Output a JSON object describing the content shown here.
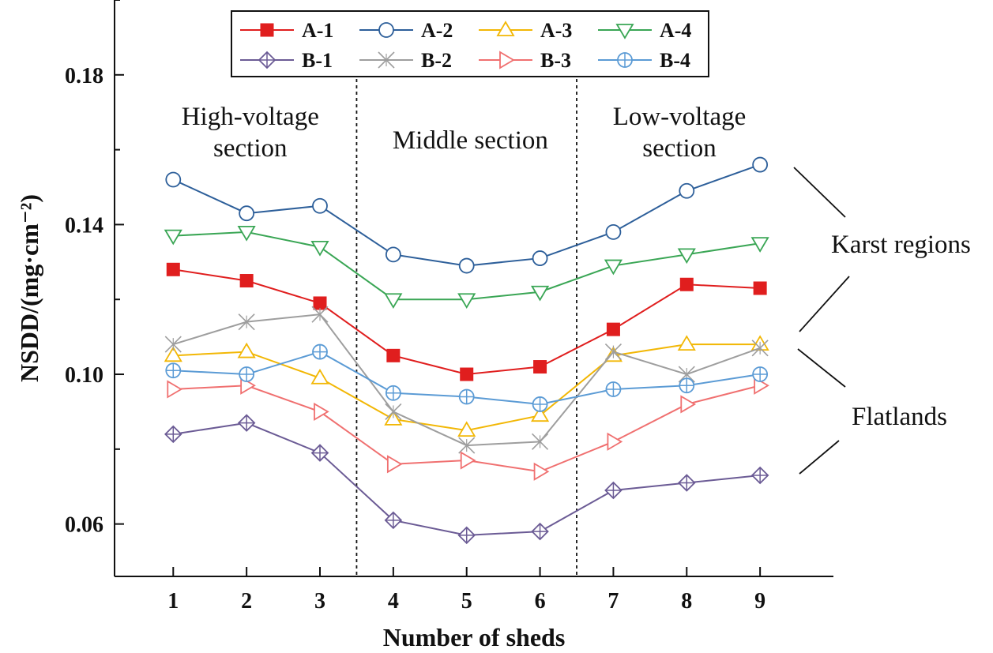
{
  "chart_data": {
    "type": "line",
    "xlabel": "Number of sheds",
    "ylabel": "NSDD/(mg·cm⁻²)",
    "x": [
      1,
      2,
      3,
      4,
      5,
      6,
      7,
      8,
      9
    ],
    "xlim": [
      0.2,
      10.0
    ],
    "ylim": [
      0.046,
      0.2
    ],
    "y_ticks": [
      0.06,
      0.1,
      0.14,
      0.18
    ],
    "y_tick_labels": [
      "0.06",
      "0.10",
      "0.14",
      "0.18"
    ],
    "y_minor_ticks": [
      0.08,
      0.12,
      0.16,
      0.2
    ],
    "section_dividers": [
      3.5,
      6.5
    ],
    "sections": [
      {
        "lines": [
          "High-voltage",
          "section"
        ],
        "x": 2.05
      },
      {
        "lines": [
          "Middle section"
        ],
        "x": 5.05
      },
      {
        "lines": [
          "Low-voltage",
          "section"
        ],
        "x": 7.9
      }
    ],
    "annotations": [
      "Karst regions",
      "Flatlands"
    ],
    "legend": {
      "placement": "top-center",
      "columns": 4
    },
    "series": [
      {
        "name": "A-1",
        "color": "#e01e1e",
        "marker": "square-filled",
        "values": [
          0.128,
          0.125,
          0.119,
          0.105,
          0.1,
          0.102,
          0.112,
          0.124,
          0.123
        ]
      },
      {
        "name": "A-2",
        "color": "#2d5f9a",
        "marker": "circle",
        "values": [
          0.152,
          0.143,
          0.145,
          0.132,
          0.129,
          0.131,
          0.138,
          0.149,
          0.156
        ]
      },
      {
        "name": "A-3",
        "color": "#f2b705",
        "marker": "triangle-up",
        "values": [
          0.105,
          0.106,
          0.099,
          0.088,
          0.085,
          0.089,
          0.105,
          0.108,
          0.108
        ]
      },
      {
        "name": "A-4",
        "color": "#3aa655",
        "marker": "triangle-down",
        "values": [
          0.137,
          0.138,
          0.134,
          0.12,
          0.12,
          0.122,
          0.129,
          0.132,
          0.135
        ]
      },
      {
        "name": "B-1",
        "color": "#6b5b95",
        "marker": "diamond-plus",
        "values": [
          0.084,
          0.087,
          0.079,
          0.061,
          0.057,
          0.058,
          0.069,
          0.071,
          0.073
        ]
      },
      {
        "name": "B-2",
        "color": "#9e9e9e",
        "marker": "x-star",
        "values": [
          0.108,
          0.114,
          0.116,
          0.09,
          0.081,
          0.082,
          0.106,
          0.1,
          0.107
        ]
      },
      {
        "name": "B-3",
        "color": "#f07070",
        "marker": "triangle-right",
        "values": [
          0.096,
          0.097,
          0.09,
          0.076,
          0.077,
          0.074,
          0.082,
          0.092,
          0.097
        ]
      },
      {
        "name": "B-4",
        "color": "#5b9bd5",
        "marker": "circle-plus",
        "values": [
          0.101,
          0.1,
          0.106,
          0.095,
          0.094,
          0.092,
          0.096,
          0.097,
          0.1
        ]
      }
    ]
  }
}
